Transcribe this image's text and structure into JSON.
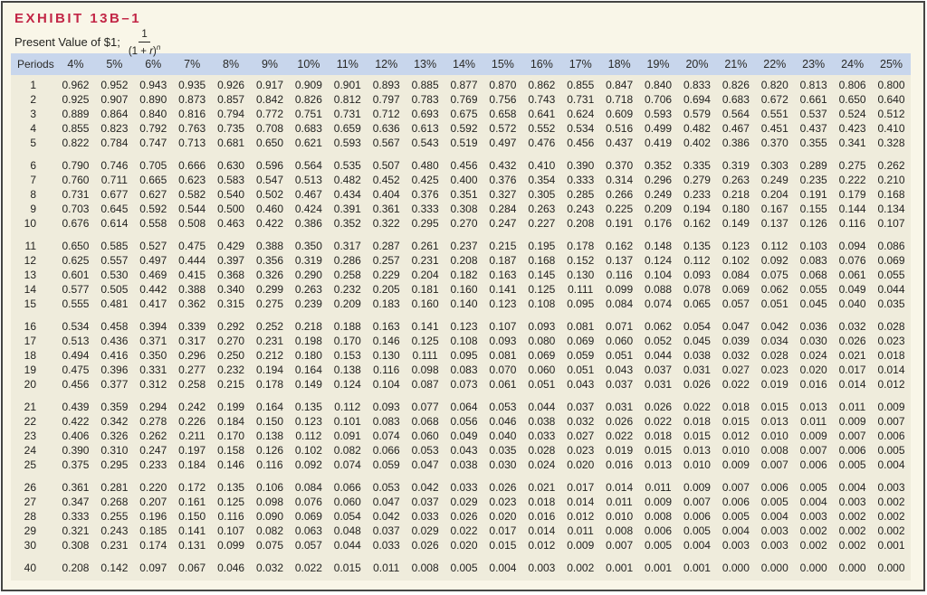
{
  "exhibit": {
    "label": "EXHIBIT 13B–1",
    "subtitle": "Present Value of $1;",
    "formula": {
      "numerator": "1",
      "denominator_open": "(1 + ",
      "denominator_variable": "r",
      "denominator_close": ")",
      "exponent": "n"
    }
  },
  "colors": {
    "title_red": "#c22646",
    "header_band_blue": "#c8d6ec",
    "page_cream": "#f9f6e8",
    "table_body_cream": "#efecdc",
    "frame_border": "#454543"
  },
  "table": {
    "columns": [
      "Periods",
      "4%",
      "5%",
      "6%",
      "7%",
      "8%",
      "9%",
      "10%",
      "11%",
      "12%",
      "13%",
      "14%",
      "15%",
      "16%",
      "17%",
      "18%",
      "19%",
      "20%",
      "21%",
      "22%",
      "23%",
      "24%",
      "25%"
    ],
    "row_groups": [
      [
        {
          "period": "1",
          "values": [
            "0.962",
            "0.952",
            "0.943",
            "0.935",
            "0.926",
            "0.917",
            "0.909",
            "0.901",
            "0.893",
            "0.885",
            "0.877",
            "0.870",
            "0.862",
            "0.855",
            "0.847",
            "0.840",
            "0.833",
            "0.826",
            "0.820",
            "0.813",
            "0.806",
            "0.800"
          ]
        },
        {
          "period": "2",
          "values": [
            "0.925",
            "0.907",
            "0.890",
            "0.873",
            "0.857",
            "0.842",
            "0.826",
            "0.812",
            "0.797",
            "0.783",
            "0.769",
            "0.756",
            "0.743",
            "0.731",
            "0.718",
            "0.706",
            "0.694",
            "0.683",
            "0.672",
            "0.661",
            "0.650",
            "0.640"
          ]
        },
        {
          "period": "3",
          "values": [
            "0.889",
            "0.864",
            "0.840",
            "0.816",
            "0.794",
            "0.772",
            "0.751",
            "0.731",
            "0.712",
            "0.693",
            "0.675",
            "0.658",
            "0.641",
            "0.624",
            "0.609",
            "0.593",
            "0.579",
            "0.564",
            "0.551",
            "0.537",
            "0.524",
            "0.512"
          ]
        },
        {
          "period": "4",
          "values": [
            "0.855",
            "0.823",
            "0.792",
            "0.763",
            "0.735",
            "0.708",
            "0.683",
            "0.659",
            "0.636",
            "0.613",
            "0.592",
            "0.572",
            "0.552",
            "0.534",
            "0.516",
            "0.499",
            "0.482",
            "0.467",
            "0.451",
            "0.437",
            "0.423",
            "0.410"
          ]
        },
        {
          "period": "5",
          "values": [
            "0.822",
            "0.784",
            "0.747",
            "0.713",
            "0.681",
            "0.650",
            "0.621",
            "0.593",
            "0.567",
            "0.543",
            "0.519",
            "0.497",
            "0.476",
            "0.456",
            "0.437",
            "0.419",
            "0.402",
            "0.386",
            "0.370",
            "0.355",
            "0.341",
            "0.328"
          ]
        }
      ],
      [
        {
          "period": "6",
          "values": [
            "0.790",
            "0.746",
            "0.705",
            "0.666",
            "0.630",
            "0.596",
            "0.564",
            "0.535",
            "0.507",
            "0.480",
            "0.456",
            "0.432",
            "0.410",
            "0.390",
            "0.370",
            "0.352",
            "0.335",
            "0.319",
            "0.303",
            "0.289",
            "0.275",
            "0.262"
          ]
        },
        {
          "period": "7",
          "values": [
            "0.760",
            "0.711",
            "0.665",
            "0.623",
            "0.583",
            "0.547",
            "0.513",
            "0.482",
            "0.452",
            "0.425",
            "0.400",
            "0.376",
            "0.354",
            "0.333",
            "0.314",
            "0.296",
            "0.279",
            "0.263",
            "0.249",
            "0.235",
            "0.222",
            "0.210"
          ]
        },
        {
          "period": "8",
          "values": [
            "0.731",
            "0.677",
            "0.627",
            "0.582",
            "0.540",
            "0.502",
            "0.467",
            "0.434",
            "0.404",
            "0.376",
            "0.351",
            "0.327",
            "0.305",
            "0.285",
            "0.266",
            "0.249",
            "0.233",
            "0.218",
            "0.204",
            "0.191",
            "0.179",
            "0.168"
          ]
        },
        {
          "period": "9",
          "values": [
            "0.703",
            "0.645",
            "0.592",
            "0.544",
            "0.500",
            "0.460",
            "0.424",
            "0.391",
            "0.361",
            "0.333",
            "0.308",
            "0.284",
            "0.263",
            "0.243",
            "0.225",
            "0.209",
            "0.194",
            "0.180",
            "0.167",
            "0.155",
            "0.144",
            "0.134"
          ]
        },
        {
          "period": "10",
          "values": [
            "0.676",
            "0.614",
            "0.558",
            "0.508",
            "0.463",
            "0.422",
            "0.386",
            "0.352",
            "0.322",
            "0.295",
            "0.270",
            "0.247",
            "0.227",
            "0.208",
            "0.191",
            "0.176",
            "0.162",
            "0.149",
            "0.137",
            "0.126",
            "0.116",
            "0.107"
          ]
        }
      ],
      [
        {
          "period": "11",
          "values": [
            "0.650",
            "0.585",
            "0.527",
            "0.475",
            "0.429",
            "0.388",
            "0.350",
            "0.317",
            "0.287",
            "0.261",
            "0.237",
            "0.215",
            "0.195",
            "0.178",
            "0.162",
            "0.148",
            "0.135",
            "0.123",
            "0.112",
            "0.103",
            "0.094",
            "0.086"
          ]
        },
        {
          "period": "12",
          "values": [
            "0.625",
            "0.557",
            "0.497",
            "0.444",
            "0.397",
            "0.356",
            "0.319",
            "0.286",
            "0.257",
            "0.231",
            "0.208",
            "0.187",
            "0.168",
            "0.152",
            "0.137",
            "0.124",
            "0.112",
            "0.102",
            "0.092",
            "0.083",
            "0.076",
            "0.069"
          ]
        },
        {
          "period": "13",
          "values": [
            "0.601",
            "0.530",
            "0.469",
            "0.415",
            "0.368",
            "0.326",
            "0.290",
            "0.258",
            "0.229",
            "0.204",
            "0.182",
            "0.163",
            "0.145",
            "0.130",
            "0.116",
            "0.104",
            "0.093",
            "0.084",
            "0.075",
            "0.068",
            "0.061",
            "0.055"
          ]
        },
        {
          "period": "14",
          "values": [
            "0.577",
            "0.505",
            "0.442",
            "0.388",
            "0.340",
            "0.299",
            "0.263",
            "0.232",
            "0.205",
            "0.181",
            "0.160",
            "0.141",
            "0.125",
            "0.111",
            "0.099",
            "0.088",
            "0.078",
            "0.069",
            "0.062",
            "0.055",
            "0.049",
            "0.044"
          ]
        },
        {
          "period": "15",
          "values": [
            "0.555",
            "0.481",
            "0.417",
            "0.362",
            "0.315",
            "0.275",
            "0.239",
            "0.209",
            "0.183",
            "0.160",
            "0.140",
            "0.123",
            "0.108",
            "0.095",
            "0.084",
            "0.074",
            "0.065",
            "0.057",
            "0.051",
            "0.045",
            "0.040",
            "0.035"
          ]
        }
      ],
      [
        {
          "period": "16",
          "values": [
            "0.534",
            "0.458",
            "0.394",
            "0.339",
            "0.292",
            "0.252",
            "0.218",
            "0.188",
            "0.163",
            "0.141",
            "0.123",
            "0.107",
            "0.093",
            "0.081",
            "0.071",
            "0.062",
            "0.054",
            "0.047",
            "0.042",
            "0.036",
            "0.032",
            "0.028"
          ]
        },
        {
          "period": "17",
          "values": [
            "0.513",
            "0.436",
            "0.371",
            "0.317",
            "0.270",
            "0.231",
            "0.198",
            "0.170",
            "0.146",
            "0.125",
            "0.108",
            "0.093",
            "0.080",
            "0.069",
            "0.060",
            "0.052",
            "0.045",
            "0.039",
            "0.034",
            "0.030",
            "0.026",
            "0.023"
          ]
        },
        {
          "period": "18",
          "values": [
            "0.494",
            "0.416",
            "0.350",
            "0.296",
            "0.250",
            "0.212",
            "0.180",
            "0.153",
            "0.130",
            "0.111",
            "0.095",
            "0.081",
            "0.069",
            "0.059",
            "0.051",
            "0.044",
            "0.038",
            "0.032",
            "0.028",
            "0.024",
            "0.021",
            "0.018"
          ]
        },
        {
          "period": "19",
          "values": [
            "0.475",
            "0.396",
            "0.331",
            "0.277",
            "0.232",
            "0.194",
            "0.164",
            "0.138",
            "0.116",
            "0.098",
            "0.083",
            "0.070",
            "0.060",
            "0.051",
            "0.043",
            "0.037",
            "0.031",
            "0.027",
            "0.023",
            "0.020",
            "0.017",
            "0.014"
          ]
        },
        {
          "period": "20",
          "values": [
            "0.456",
            "0.377",
            "0.312",
            "0.258",
            "0.215",
            "0.178",
            "0.149",
            "0.124",
            "0.104",
            "0.087",
            "0.073",
            "0.061",
            "0.051",
            "0.043",
            "0.037",
            "0.031",
            "0.026",
            "0.022",
            "0.019",
            "0.016",
            "0.014",
            "0.012"
          ]
        }
      ],
      [
        {
          "period": "21",
          "values": [
            "0.439",
            "0.359",
            "0.294",
            "0.242",
            "0.199",
            "0.164",
            "0.135",
            "0.112",
            "0.093",
            "0.077",
            "0.064",
            "0.053",
            "0.044",
            "0.037",
            "0.031",
            "0.026",
            "0.022",
            "0.018",
            "0.015",
            "0.013",
            "0.011",
            "0.009"
          ]
        },
        {
          "period": "22",
          "values": [
            "0.422",
            "0.342",
            "0.278",
            "0.226",
            "0.184",
            "0.150",
            "0.123",
            "0.101",
            "0.083",
            "0.068",
            "0.056",
            "0.046",
            "0.038",
            "0.032",
            "0.026",
            "0.022",
            "0.018",
            "0.015",
            "0.013",
            "0.011",
            "0.009",
            "0.007"
          ]
        },
        {
          "period": "23",
          "values": [
            "0.406",
            "0.326",
            "0.262",
            "0.211",
            "0.170",
            "0.138",
            "0.112",
            "0.091",
            "0.074",
            "0.060",
            "0.049",
            "0.040",
            "0.033",
            "0.027",
            "0.022",
            "0.018",
            "0.015",
            "0.012",
            "0.010",
            "0.009",
            "0.007",
            "0.006"
          ]
        },
        {
          "period": "24",
          "values": [
            "0.390",
            "0.310",
            "0.247",
            "0.197",
            "0.158",
            "0.126",
            "0.102",
            "0.082",
            "0.066",
            "0.053",
            "0.043",
            "0.035",
            "0.028",
            "0.023",
            "0.019",
            "0.015",
            "0.013",
            "0.010",
            "0.008",
            "0.007",
            "0.006",
            "0.005"
          ]
        },
        {
          "period": "25",
          "values": [
            "0.375",
            "0.295",
            "0.233",
            "0.184",
            "0.146",
            "0.116",
            "0.092",
            "0.074",
            "0.059",
            "0.047",
            "0.038",
            "0.030",
            "0.024",
            "0.020",
            "0.016",
            "0.013",
            "0.010",
            "0.009",
            "0.007",
            "0.006",
            "0.005",
            "0.004"
          ]
        }
      ],
      [
        {
          "period": "26",
          "values": [
            "0.361",
            "0.281",
            "0.220",
            "0.172",
            "0.135",
            "0.106",
            "0.084",
            "0.066",
            "0.053",
            "0.042",
            "0.033",
            "0.026",
            "0.021",
            "0.017",
            "0.014",
            "0.011",
            "0.009",
            "0.007",
            "0.006",
            "0.005",
            "0.004",
            "0.003"
          ]
        },
        {
          "period": "27",
          "values": [
            "0.347",
            "0.268",
            "0.207",
            "0.161",
            "0.125",
            "0.098",
            "0.076",
            "0.060",
            "0.047",
            "0.037",
            "0.029",
            "0.023",
            "0.018",
            "0.014",
            "0.011",
            "0.009",
            "0.007",
            "0.006",
            "0.005",
            "0.004",
            "0.003",
            "0.002"
          ]
        },
        {
          "period": "28",
          "values": [
            "0.333",
            "0.255",
            "0.196",
            "0.150",
            "0.116",
            "0.090",
            "0.069",
            "0.054",
            "0.042",
            "0.033",
            "0.026",
            "0.020",
            "0.016",
            "0.012",
            "0.010",
            "0.008",
            "0.006",
            "0.005",
            "0.004",
            "0.003",
            "0.002",
            "0.002"
          ]
        },
        {
          "period": "29",
          "values": [
            "0.321",
            "0.243",
            "0.185",
            "0.141",
            "0.107",
            "0.082",
            "0.063",
            "0.048",
            "0.037",
            "0.029",
            "0.022",
            "0.017",
            "0.014",
            "0.011",
            "0.008",
            "0.006",
            "0.005",
            "0.004",
            "0.003",
            "0.002",
            "0.002",
            "0.002"
          ]
        },
        {
          "period": "30",
          "values": [
            "0.308",
            "0.231",
            "0.174",
            "0.131",
            "0.099",
            "0.075",
            "0.057",
            "0.044",
            "0.033",
            "0.026",
            "0.020",
            "0.015",
            "0.012",
            "0.009",
            "0.007",
            "0.005",
            "0.004",
            "0.003",
            "0.003",
            "0.002",
            "0.002",
            "0.001"
          ]
        }
      ],
      [
        {
          "period": "40",
          "values": [
            "0.208",
            "0.142",
            "0.097",
            "0.067",
            "0.046",
            "0.032",
            "0.022",
            "0.015",
            "0.011",
            "0.008",
            "0.005",
            "0.004",
            "0.003",
            "0.002",
            "0.001",
            "0.001",
            "0.001",
            "0.000",
            "0.000",
            "0.000",
            "0.000",
            "0.000"
          ]
        }
      ]
    ]
  }
}
